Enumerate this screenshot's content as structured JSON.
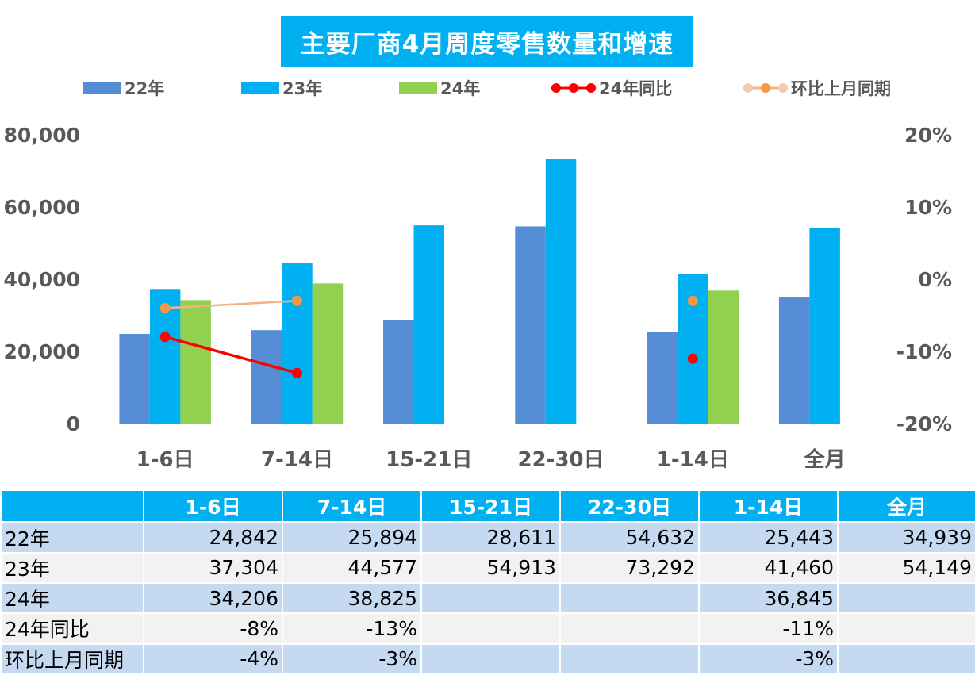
{
  "chart_data": {
    "type": "bar",
    "title": "主要厂商4月周度零售数量和增速",
    "categories": [
      "1-6日",
      "7-14日",
      "15-21日",
      "22-30日",
      "1-14日",
      "全月"
    ],
    "series": [
      {
        "name": "22年",
        "type": "bar",
        "color": "#558ed5",
        "values": [
          24842,
          25894,
          28611,
          54632,
          25443,
          34939
        ]
      },
      {
        "name": "23年",
        "type": "bar",
        "color": "#00b0f0",
        "values": [
          37304,
          44577,
          54913,
          73292,
          41460,
          54149
        ]
      },
      {
        "name": "24年",
        "type": "bar",
        "color": "#92d050",
        "values": [
          34206,
          38825,
          null,
          null,
          36845,
          null
        ]
      },
      {
        "name": "24年同比",
        "type": "line",
        "axis": "right",
        "color": "#ff0000",
        "values": [
          -0.08,
          -0.13,
          null,
          null,
          -0.11,
          null
        ]
      },
      {
        "name": "环比上月同期",
        "type": "line",
        "axis": "right",
        "color": "#f4b183",
        "marker_color": "#f79646",
        "values": [
          -0.04,
          -0.03,
          null,
          null,
          -0.03,
          null
        ]
      }
    ],
    "y_left": {
      "min": 0,
      "max": 80000,
      "ticks": [
        "0",
        "20,000",
        "40,000",
        "60,000",
        "80,000"
      ]
    },
    "y_right": {
      "min": -0.2,
      "max": 0.2,
      "ticks": [
        "-20%",
        "-10%",
        "0%",
        "10%",
        "20%"
      ]
    },
    "legend_position": "top",
    "grid": false
  },
  "table": {
    "header": [
      "",
      "1-6日",
      "7-14日",
      "15-21日",
      "22-30日",
      "1-14日",
      "全月"
    ],
    "rows": [
      [
        "22年",
        "24,842",
        "25,894",
        "28,611",
        "54,632",
        "25,443",
        "34,939"
      ],
      [
        "23年",
        "37,304",
        "44,577",
        "54,913",
        "73,292",
        "41,460",
        "54,149"
      ],
      [
        "24年",
        "34,206",
        "38,825",
        "",
        "",
        "36,845",
        ""
      ],
      [
        "24年同比",
        "-8%",
        "-13%",
        "",
        "",
        "-11%",
        ""
      ],
      [
        "环比上月同期",
        "-4%",
        "-3%",
        "",
        "",
        "-3%",
        ""
      ]
    ]
  }
}
